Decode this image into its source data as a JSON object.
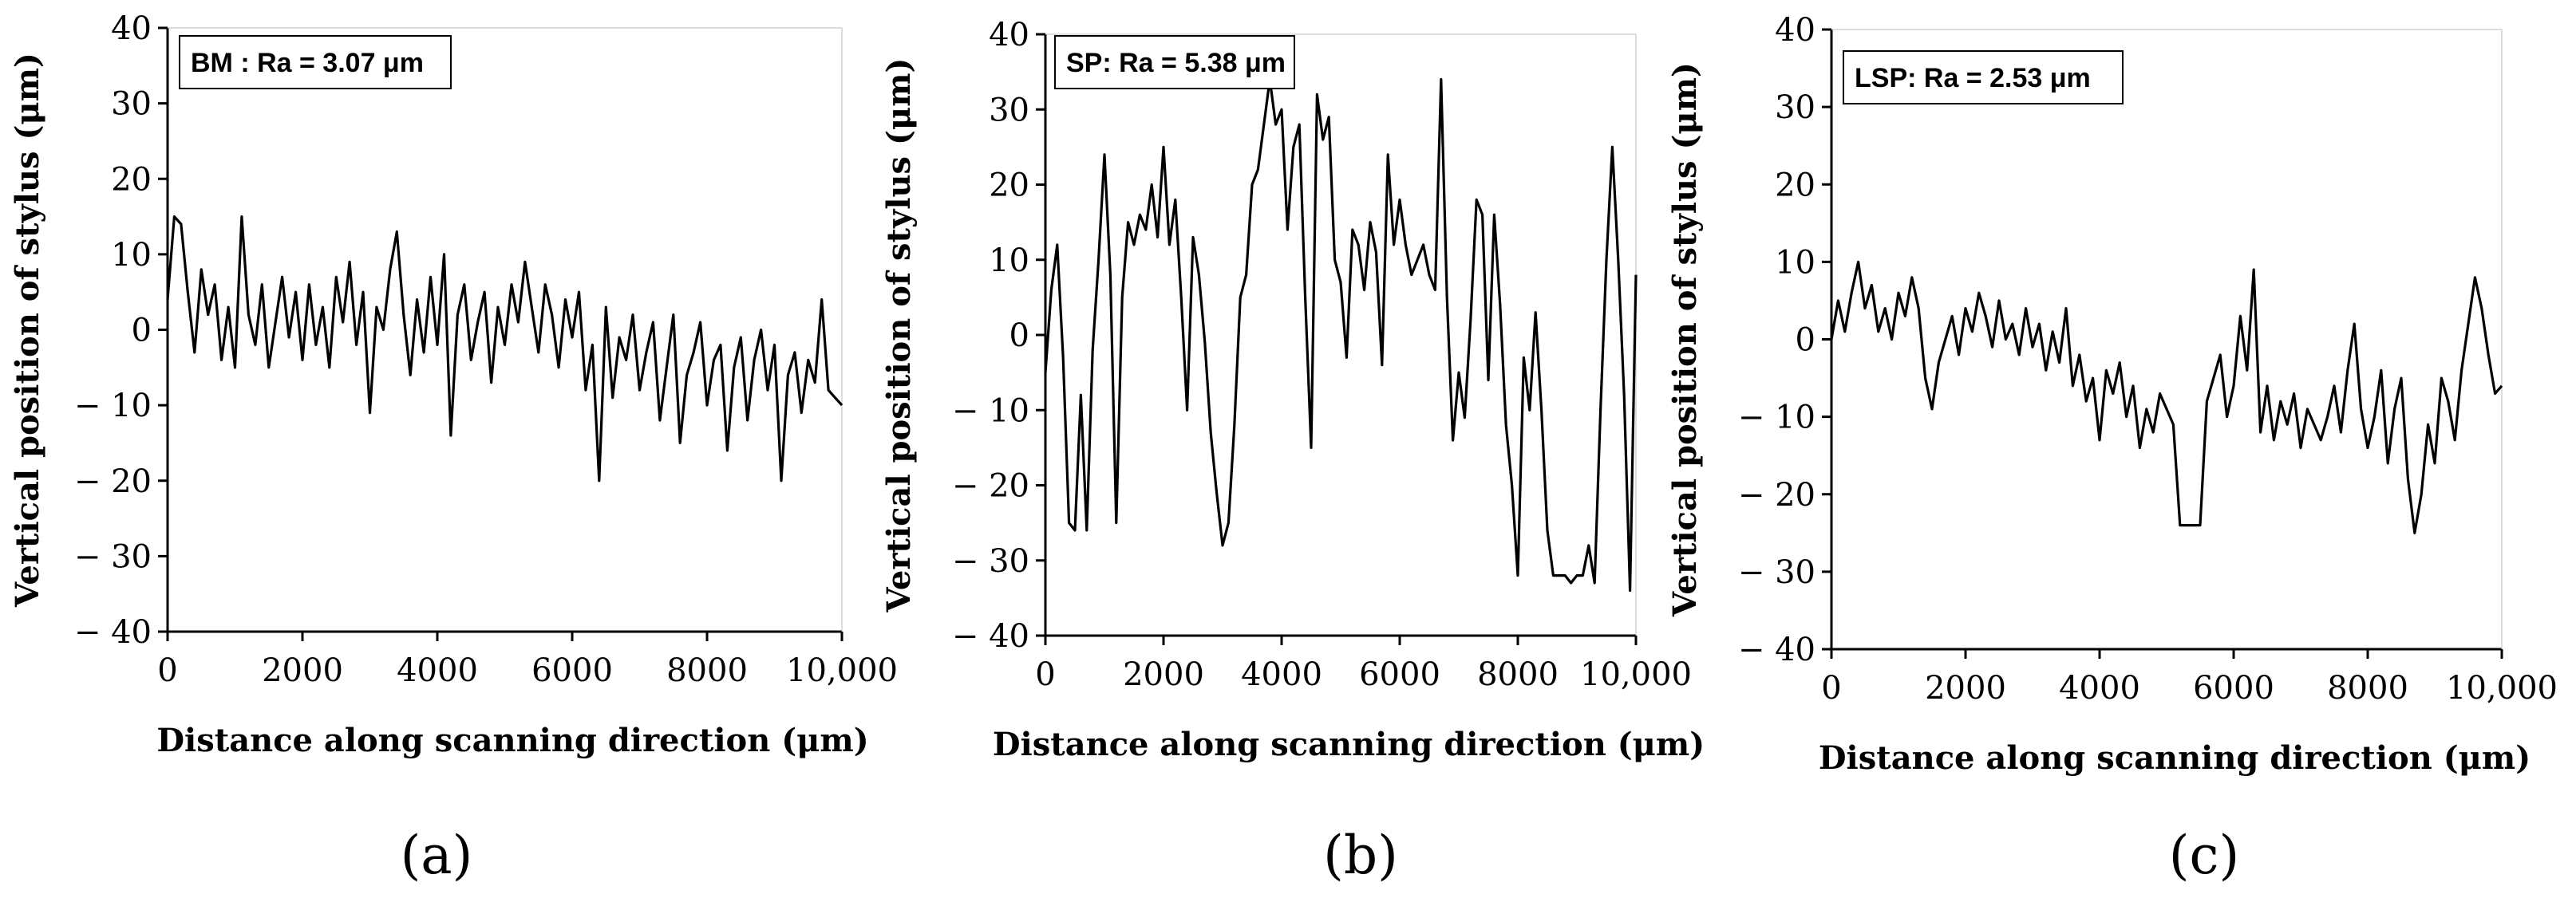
{
  "chart_data": [
    {
      "type": "line",
      "panel_label": "(a)",
      "legend": "BM : Ra = 3.07 μm",
      "xlabel": "Distance along scanning direction (μm)",
      "ylabel": "Vertical position of stylus (μm)",
      "xlim": [
        0,
        10000
      ],
      "ylim": [
        -40,
        40
      ],
      "x_ticks": [
        0,
        2000,
        4000,
        6000,
        8000,
        10000
      ],
      "x_tick_labels": [
        "0",
        "2000",
        "4000",
        "6000",
        "8000",
        "10,000"
      ],
      "y_ticks": [
        40,
        30,
        20,
        10,
        0,
        -10,
        -20,
        -30,
        -40
      ],
      "y_tick_labels": [
        "40",
        "30",
        "20",
        "10",
        "0",
        "− 10",
        "− 20",
        "− 30",
        "− 40"
      ],
      "series": [
        {
          "name": "BM",
          "x": [
            0,
            100,
            200,
            300,
            400,
            500,
            600,
            700,
            800,
            900,
            1000,
            1100,
            1200,
            1300,
            1400,
            1500,
            1600,
            1700,
            1800,
            1900,
            2000,
            2100,
            2200,
            2300,
            2400,
            2500,
            2600,
            2700,
            2800,
            2900,
            3000,
            3100,
            3200,
            3300,
            3400,
            3500,
            3600,
            3700,
            3800,
            3900,
            4000,
            4100,
            4200,
            4300,
            4400,
            4500,
            4600,
            4700,
            4800,
            4900,
            5000,
            5100,
            5200,
            5300,
            5400,
            5500,
            5600,
            5700,
            5800,
            5900,
            6000,
            6100,
            6200,
            6300,
            6400,
            6500,
            6600,
            6700,
            6800,
            6900,
            7000,
            7100,
            7200,
            7300,
            7400,
            7500,
            7600,
            7700,
            7800,
            7900,
            8000,
            8100,
            8200,
            8300,
            8400,
            8500,
            8600,
            8700,
            8800,
            8900,
            9000,
            9100,
            9200,
            9300,
            9400,
            9500,
            9600,
            9700,
            9800,
            9900,
            10000
          ],
          "y": [
            4,
            15,
            14,
            5,
            -3,
            8,
            2,
            6,
            -4,
            3,
            -5,
            15,
            2,
            -2,
            6,
            -5,
            1,
            7,
            -1,
            5,
            -4,
            6,
            -2,
            3,
            -5,
            7,
            1,
            9,
            -2,
            5,
            -11,
            3,
            0,
            8,
            13,
            2,
            -6,
            4,
            -3,
            7,
            -2,
            10,
            -14,
            2,
            6,
            -4,
            1,
            5,
            -7,
            3,
            -2,
            6,
            1,
            9,
            3,
            -3,
            6,
            2,
            -5,
            4,
            -1,
            5,
            -8,
            -2,
            -20,
            3,
            -9,
            -1,
            -4,
            2,
            -8,
            -3,
            1,
            -12,
            -5,
            2,
            -15,
            -6,
            -3,
            1,
            -10,
            -4,
            -2,
            -16,
            -5,
            -1,
            -12,
            -4,
            0,
            -8,
            -2,
            -20,
            -6,
            -3,
            -11,
            -4,
            -7,
            4,
            -8,
            -9,
            -10
          ]
        }
      ]
    },
    {
      "type": "line",
      "panel_label": "(b)",
      "legend": "SP: Ra = 5.38 μm",
      "xlabel": "Distance along scanning direction (μm)",
      "ylabel": "Vertical position of stylus (μm)",
      "xlim": [
        0,
        10000
      ],
      "ylim": [
        -40,
        40
      ],
      "x_ticks": [
        0,
        2000,
        4000,
        6000,
        8000,
        10000
      ],
      "x_tick_labels": [
        "0",
        "2000",
        "4000",
        "6000",
        "8000",
        "10,000"
      ],
      "y_ticks": [
        40,
        30,
        20,
        10,
        0,
        -10,
        -20,
        -30,
        -40
      ],
      "y_tick_labels": [
        "40",
        "30",
        "20",
        "10",
        "0",
        "− 10",
        "− 20",
        "− 30",
        "− 40"
      ],
      "series": [
        {
          "name": "SP",
          "x": [
            0,
            100,
            200,
            300,
            400,
            500,
            600,
            700,
            800,
            900,
            1000,
            1100,
            1200,
            1300,
            1400,
            1500,
            1600,
            1700,
            1800,
            1900,
            2000,
            2100,
            2200,
            2300,
            2400,
            2500,
            2600,
            2700,
            2800,
            2900,
            3000,
            3100,
            3200,
            3300,
            3400,
            3500,
            3600,
            3700,
            3800,
            3900,
            4000,
            4100,
            4200,
            4300,
            4400,
            4500,
            4600,
            4700,
            4800,
            4900,
            5000,
            5100,
            5200,
            5300,
            5400,
            5500,
            5600,
            5700,
            5800,
            5900,
            6000,
            6100,
            6200,
            6300,
            6400,
            6500,
            6600,
            6700,
            6800,
            6900,
            7000,
            7100,
            7200,
            7300,
            7400,
            7500,
            7600,
            7700,
            7800,
            7900,
            8000,
            8100,
            8200,
            8300,
            8400,
            8500,
            8600,
            8700,
            8800,
            8900,
            9000,
            9100,
            9200,
            9300,
            9400,
            9500,
            9600,
            9700,
            9800,
            9900,
            10000
          ],
          "y": [
            -5,
            6,
            12,
            -3,
            -25,
            -26,
            -8,
            -26,
            -2,
            10,
            24,
            8,
            -25,
            5,
            15,
            12,
            16,
            14,
            20,
            13,
            25,
            12,
            18,
            5,
            -10,
            13,
            8,
            -1,
            -13,
            -21,
            -28,
            -25,
            -12,
            5,
            8,
            20,
            22,
            28,
            34,
            28,
            30,
            14,
            25,
            28,
            5,
            -15,
            32,
            26,
            29,
            10,
            7,
            -3,
            14,
            12,
            6,
            15,
            11,
            -4,
            24,
            12,
            18,
            12,
            8,
            10,
            12,
            8,
            6,
            34,
            5,
            -14,
            -5,
            -11,
            2,
            18,
            16,
            -6,
            16,
            4,
            -12,
            -20,
            -32,
            -3,
            -10,
            3,
            -10,
            -26,
            -32,
            -32,
            -32,
            -33,
            -32,
            -32,
            -28,
            -33,
            -10,
            10,
            25,
            10,
            -8,
            -34,
            8
          ]
        }
      ]
    },
    {
      "type": "line",
      "panel_label": "(c)",
      "legend": "LSP: Ra = 2.53 μm",
      "xlabel": "Distance along scanning direction (μm)",
      "ylabel": "Vertical position of stylus (μm)",
      "xlim": [
        0,
        10000
      ],
      "ylim": [
        -40,
        40
      ],
      "x_ticks": [
        0,
        2000,
        4000,
        6000,
        8000,
        10000
      ],
      "x_tick_labels": [
        "0",
        "2000",
        "4000",
        "6000",
        "8000",
        "10,000"
      ],
      "y_ticks": [
        40,
        30,
        20,
        10,
        0,
        -10,
        -20,
        -30,
        -40
      ],
      "y_tick_labels": [
        "40",
        "30",
        "20",
        "10",
        "0",
        "− 10",
        "− 20",
        "− 30",
        "− 40"
      ],
      "series": [
        {
          "name": "LSP",
          "x": [
            0,
            100,
            200,
            300,
            400,
            500,
            600,
            700,
            800,
            900,
            1000,
            1100,
            1200,
            1300,
            1400,
            1500,
            1600,
            1700,
            1800,
            1900,
            2000,
            2100,
            2200,
            2300,
            2400,
            2500,
            2600,
            2700,
            2800,
            2900,
            3000,
            3100,
            3200,
            3300,
            3400,
            3500,
            3600,
            3700,
            3800,
            3900,
            4000,
            4100,
            4200,
            4300,
            4400,
            4500,
            4600,
            4700,
            4800,
            4900,
            5000,
            5100,
            5200,
            5300,
            5400,
            5500,
            5600,
            5700,
            5800,
            5900,
            6000,
            6100,
            6200,
            6300,
            6400,
            6500,
            6600,
            6700,
            6800,
            6900,
            7000,
            7100,
            7200,
            7300,
            7400,
            7500,
            7600,
            7700,
            7800,
            7900,
            8000,
            8100,
            8200,
            8300,
            8400,
            8500,
            8600,
            8700,
            8800,
            8900,
            9000,
            9100,
            9200,
            9300,
            9400,
            9500,
            9600,
            9700,
            9800,
            9900,
            10000
          ],
          "y": [
            0,
            5,
            1,
            6,
            10,
            4,
            7,
            1,
            4,
            0,
            6,
            3,
            8,
            4,
            -5,
            -9,
            -3,
            0,
            3,
            -2,
            4,
            1,
            6,
            3,
            -1,
            5,
            0,
            2,
            -2,
            4,
            -1,
            2,
            -4,
            1,
            -3,
            4,
            -6,
            -2,
            -8,
            -5,
            -13,
            -4,
            -7,
            -3,
            -10,
            -6,
            -14,
            -9,
            -12,
            -7,
            -9,
            -11,
            -24,
            -24,
            -24,
            -24,
            -8,
            -5,
            -2,
            -10,
            -6,
            3,
            -4,
            9,
            -12,
            -6,
            -13,
            -8,
            -11,
            -7,
            -14,
            -9,
            -11,
            -13,
            -10,
            -6,
            -12,
            -4,
            2,
            -9,
            -14,
            -10,
            -4,
            -16,
            -9,
            -5,
            -18,
            -25,
            -20,
            -11,
            -16,
            -5,
            -8,
            -13,
            -4,
            2,
            8,
            4,
            -2,
            -7,
            -6
          ]
        }
      ]
    }
  ]
}
